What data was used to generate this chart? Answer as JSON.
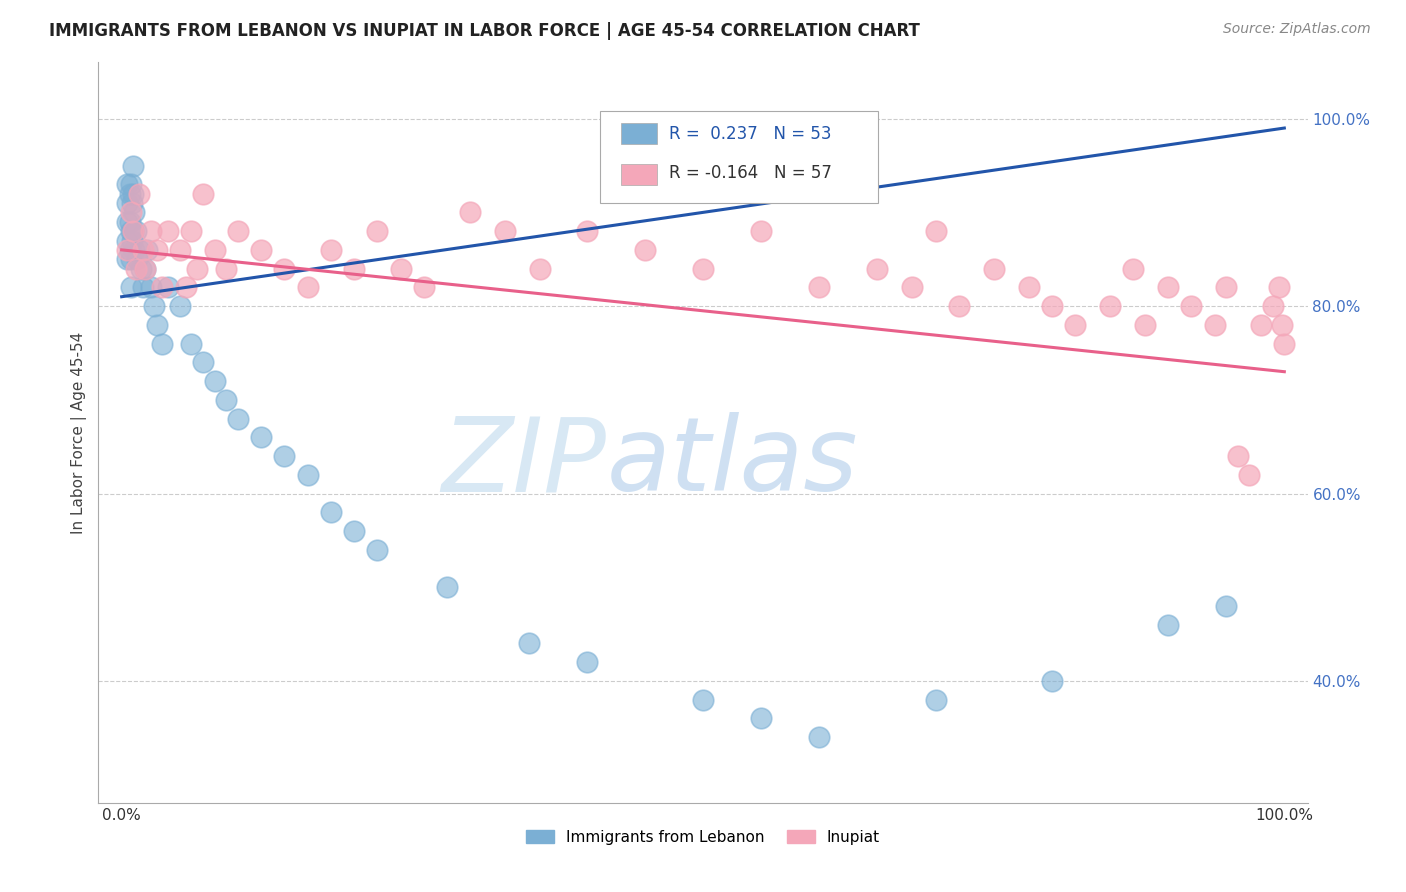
{
  "title": "IMMIGRANTS FROM LEBANON VS INUPIAT IN LABOR FORCE | AGE 45-54 CORRELATION CHART",
  "source": "Source: ZipAtlas.com",
  "ylabel": "In Labor Force | Age 45-54",
  "xlim": [
    -0.02,
    1.02
  ],
  "ylim": [
    0.27,
    1.06
  ],
  "yticks": [
    0.4,
    0.6,
    0.8,
    1.0
  ],
  "ytick_labels": [
    "40.0%",
    "60.0%",
    "80.0%",
    "100.0%"
  ],
  "xticks": [
    0.0,
    1.0
  ],
  "xtick_labels": [
    "0.0%",
    "100.0%"
  ],
  "blue_color": "#7bafd4",
  "pink_color": "#f4a7b9",
  "blue_line_color": "#2255aa",
  "pink_line_color": "#e8608a",
  "background_color": "#ffffff",
  "grid_color": "#cccccc",
  "blue_x": [
    0.005,
    0.005,
    0.005,
    0.005,
    0.005,
    0.007,
    0.007,
    0.007,
    0.008,
    0.008,
    0.008,
    0.008,
    0.009,
    0.009,
    0.01,
    0.01,
    0.01,
    0.011,
    0.011,
    0.012,
    0.013,
    0.015,
    0.017,
    0.018,
    0.02,
    0.022,
    0.025,
    0.028,
    0.03,
    0.035,
    0.04,
    0.05,
    0.06,
    0.07,
    0.08,
    0.09,
    0.1,
    0.12,
    0.14,
    0.16,
    0.18,
    0.2,
    0.22,
    0.28,
    0.35,
    0.4,
    0.5,
    0.55,
    0.6,
    0.7,
    0.8,
    0.9,
    0.95
  ],
  "blue_y": [
    0.93,
    0.91,
    0.89,
    0.87,
    0.85,
    0.92,
    0.89,
    0.86,
    0.93,
    0.88,
    0.85,
    0.82,
    0.91,
    0.87,
    0.95,
    0.92,
    0.88,
    0.9,
    0.86,
    0.88,
    0.85,
    0.86,
    0.84,
    0.82,
    0.84,
    0.86,
    0.82,
    0.8,
    0.78,
    0.76,
    0.82,
    0.8,
    0.76,
    0.74,
    0.72,
    0.7,
    0.68,
    0.66,
    0.64,
    0.62,
    0.58,
    0.56,
    0.54,
    0.5,
    0.44,
    0.42,
    0.38,
    0.36,
    0.34,
    0.38,
    0.4,
    0.46,
    0.48
  ],
  "pink_x": [
    0.005,
    0.008,
    0.01,
    0.012,
    0.015,
    0.018,
    0.02,
    0.025,
    0.03,
    0.035,
    0.04,
    0.05,
    0.055,
    0.06,
    0.065,
    0.07,
    0.08,
    0.09,
    0.1,
    0.12,
    0.14,
    0.16,
    0.18,
    0.2,
    0.22,
    0.24,
    0.26,
    0.3,
    0.33,
    0.36,
    0.4,
    0.45,
    0.5,
    0.55,
    0.6,
    0.65,
    0.68,
    0.7,
    0.72,
    0.75,
    0.78,
    0.8,
    0.82,
    0.85,
    0.87,
    0.88,
    0.9,
    0.92,
    0.94,
    0.95,
    0.96,
    0.97,
    0.98,
    0.99,
    0.995,
    0.998,
    1.0
  ],
  "pink_y": [
    0.86,
    0.9,
    0.88,
    0.84,
    0.92,
    0.86,
    0.84,
    0.88,
    0.86,
    0.82,
    0.88,
    0.86,
    0.82,
    0.88,
    0.84,
    0.92,
    0.86,
    0.84,
    0.88,
    0.86,
    0.84,
    0.82,
    0.86,
    0.84,
    0.88,
    0.84,
    0.82,
    0.9,
    0.88,
    0.84,
    0.88,
    0.86,
    0.84,
    0.88,
    0.82,
    0.84,
    0.82,
    0.88,
    0.8,
    0.84,
    0.82,
    0.8,
    0.78,
    0.8,
    0.84,
    0.78,
    0.82,
    0.8,
    0.78,
    0.82,
    0.64,
    0.62,
    0.78,
    0.8,
    0.82,
    0.78,
    0.76
  ],
  "blue_line_x0": 0.0,
  "blue_line_y0": 0.81,
  "blue_line_x1": 1.0,
  "blue_line_y1": 0.99,
  "pink_line_x0": 0.0,
  "pink_line_y0": 0.86,
  "pink_line_x1": 1.0,
  "pink_line_y1": 0.73
}
